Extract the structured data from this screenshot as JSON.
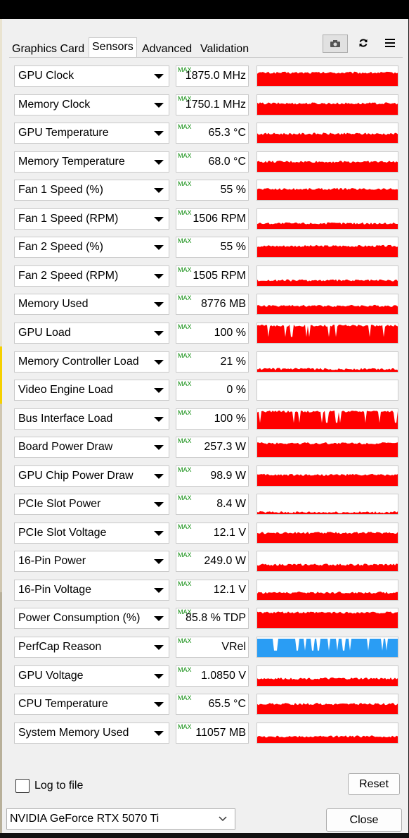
{
  "tabs": [
    {
      "label": "Graphics Card"
    },
    {
      "label": "Sensors"
    },
    {
      "label": "Advanced"
    },
    {
      "label": "Validation"
    }
  ],
  "active_tab": "Sensors",
  "toolbar_icons": [
    "camera-icon",
    "refresh-icon",
    "menu-icon"
  ],
  "max_label": "MAX",
  "sensors": [
    {
      "name": "GPU Clock",
      "value": "1875.0 MHz",
      "graph_level": 0.72,
      "graph_color": "#ff0000"
    },
    {
      "name": "Memory Clock",
      "value": "1750.1 MHz",
      "graph_level": 0.62,
      "graph_color": "#ff0000"
    },
    {
      "name": "GPU Temperature",
      "value": "65.3 °C",
      "graph_level": 0.5,
      "graph_color": "#ff0000"
    },
    {
      "name": "Memory Temperature",
      "value": "68.0 °C",
      "graph_level": 0.55,
      "graph_color": "#ff0000"
    },
    {
      "name": "Fan 1 Speed (%)",
      "value": "55 %",
      "graph_level": 0.6,
      "graph_color": "#ff0000"
    },
    {
      "name": "Fan 1 Speed (RPM)",
      "value": "1506 RPM",
      "graph_level": 0.3,
      "graph_color": "#ff0000"
    },
    {
      "name": "Fan 2 Speed (%)",
      "value": "55 %",
      "graph_level": 0.6,
      "graph_color": "#ff0000"
    },
    {
      "name": "Fan 2 Speed (RPM)",
      "value": "1505 RPM",
      "graph_level": 0.3,
      "graph_color": "#ff0000"
    },
    {
      "name": "Memory Used",
      "value": "8776 MB",
      "graph_level": 0.45,
      "graph_color": "#ff0000"
    },
    {
      "name": "GPU Load",
      "value": "100 %",
      "graph_level": 0.95,
      "graph_color": "#ff0000"
    },
    {
      "name": "Memory Controller Load",
      "value": "21 %",
      "graph_level": 0.15,
      "graph_color": "#ff0000"
    },
    {
      "name": "Video Engine Load",
      "value": "0 %",
      "graph_level": 0.0,
      "graph_color": "#ff0000"
    },
    {
      "name": "Bus Interface Load",
      "value": "100 %",
      "graph_level": 0.95,
      "graph_color": "#ff0000"
    },
    {
      "name": "Board Power Draw",
      "value": "257.3 W",
      "graph_level": 0.75,
      "graph_color": "#ff0000"
    },
    {
      "name": "GPU Chip Power Draw",
      "value": "98.9 W",
      "graph_level": 0.6,
      "graph_color": "#ff0000"
    },
    {
      "name": "PCIe Slot Power",
      "value": "8.4 W",
      "graph_level": 0.1,
      "graph_color": "#ff0000"
    },
    {
      "name": "PCIe Slot Voltage",
      "value": "12.1 V",
      "graph_level": 0.55,
      "graph_color": "#ff0000"
    },
    {
      "name": "16-Pin Power",
      "value": "249.0 W",
      "graph_level": 0.35,
      "graph_color": "#ff0000"
    },
    {
      "name": "16-Pin Voltage",
      "value": "12.1 V",
      "graph_level": 0.4,
      "graph_color": "#ff0000"
    },
    {
      "name": "Power Consumption (%)",
      "value": "85.8 % TDP",
      "graph_level": 0.85,
      "graph_color": "#ff0000"
    },
    {
      "name": "PerfCap Reason",
      "value": "VRel",
      "graph_level": 1.0,
      "graph_color": "#2a9df4"
    },
    {
      "name": "GPU Voltage",
      "value": "1.0850 V",
      "graph_level": 0.4,
      "graph_color": "#ff0000"
    },
    {
      "name": "CPU Temperature",
      "value": "65.5 °C",
      "graph_level": 0.55,
      "graph_color": "#ff0000"
    },
    {
      "name": "System Memory Used",
      "value": "11057 MB",
      "graph_level": 0.35,
      "graph_color": "#ff0000"
    }
  ],
  "footer": {
    "log_label": "Log to file",
    "log_checked": false,
    "reset_label": "Reset",
    "gpu_selected": "NVIDIA GeForce RTX 5070 Ti",
    "close_label": "Close"
  }
}
